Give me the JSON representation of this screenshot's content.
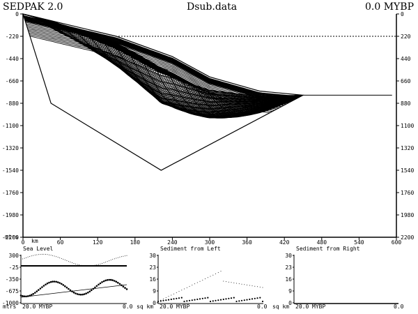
{
  "header": {
    "app_title": "SEDPAK 2.0",
    "file_title": "Dsub.data",
    "time_readout": "0.0 MYBP"
  },
  "main_plot": {
    "y_ticks": [
      "0",
      "220",
      "440",
      "660",
      "880",
      "1100",
      "1320",
      "1540",
      "1760",
      "1980",
      "2200"
    ],
    "y_left_labels": [
      "0",
      "-220",
      "-440",
      "-660",
      "-880",
      "-1100",
      "-1320",
      "-1540",
      "-1760",
      "-1980",
      "-2200"
    ],
    "y_right_labels": [
      "0",
      "220",
      "440",
      "660",
      "880",
      "1100",
      "1320",
      "1540",
      "1760",
      "1980",
      "2200"
    ],
    "y_unit": "mtrs",
    "x_ticks": [
      "0",
      "60",
      "120",
      "180",
      "240",
      "300",
      "360",
      "420",
      "480",
      "540",
      "600"
    ],
    "x_unit": "km",
    "sea_level_depth": 220,
    "basement_profile": [
      {
        "x": 0,
        "depth": 0
      },
      {
        "x": 45,
        "depth": 880
      },
      {
        "x": 222,
        "depth": 1540
      },
      {
        "x": 450,
        "depth": 800
      },
      {
        "x": 593,
        "depth": 800
      }
    ],
    "sediment_top_profile": [
      {
        "x": 0,
        "depth": 0
      },
      {
        "x": 150,
        "depth": 220
      },
      {
        "x": 240,
        "depth": 420
      },
      {
        "x": 300,
        "depth": 620
      },
      {
        "x": 380,
        "depth": 760
      },
      {
        "x": 450,
        "depth": 800
      }
    ]
  },
  "panels": {
    "sea_level": {
      "title": "Sea Level",
      "y_labels": [
        "300",
        "-25",
        "-350",
        "-675",
        "-1000"
      ],
      "y_unit": "mtrs",
      "x_left": "20.0",
      "x_unit": "MYBP",
      "x_right": "0.0"
    },
    "sediment_left": {
      "title": "Sediment from Left",
      "y_labels": [
        "30",
        "23",
        "16",
        "9",
        "0"
      ],
      "y_unit": "sq km",
      "x_left": "20.0",
      "x_unit": "MYBP",
      "x_right": "0.0"
    },
    "sediment_right": {
      "title": "Sediment from Right",
      "y_labels": [
        "30",
        "23",
        "16",
        "9",
        "0"
      ],
      "y_unit": "sq km",
      "x_left": "20.0",
      "x_unit": "MYBP",
      "x_right": "0.0"
    }
  }
}
